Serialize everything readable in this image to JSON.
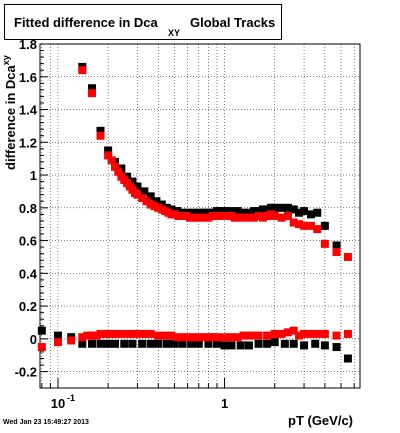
{
  "header": {
    "title_main": "Fitted difference in Dca",
    "title_sub": "XY",
    "title_tail": "Global Tracks"
  },
  "axis": {
    "ylabel_main": "difference in Dca",
    "ylabel_sub": "xy",
    "xlabel": "pT (GeV/c)"
  },
  "footer": {
    "timestamp": "Wed Jan 23 15:49:27 2013"
  },
  "chart_data": {
    "type": "scatter",
    "title": "Fitted difference in Dca XY Global Tracks",
    "xlabel": "pT (GeV/c)",
    "ylabel": "difference in Dca xy",
    "xscale": "log",
    "xlim": [
      0.078,
      6.5
    ],
    "ylim": [
      -0.3,
      1.8
    ],
    "yticks": [
      -0.2,
      0,
      0.2,
      0.4,
      0.6,
      0.8,
      1,
      1.2,
      1.4,
      1.6,
      1.8
    ],
    "ytick_labels": [
      "-0.2",
      "0",
      "0.2",
      "0.4",
      "0.6",
      "0.8",
      "1",
      "1.2",
      "1.4",
      "1.6",
      "1.8"
    ],
    "xtick_labels": [
      {
        "value": 0.1,
        "label": "10",
        "exp": "-1"
      },
      {
        "value": 1,
        "label": "1",
        "exp": ""
      }
    ],
    "grid": true,
    "colors": {
      "black_series": "#000000",
      "red_series": "#ff0000"
    },
    "series": [
      {
        "color": "black",
        "points": [
          [
            0.08,
            0.05
          ],
          [
            0.1,
            0.02
          ],
          [
            0.12,
            0.01
          ],
          [
            0.14,
            1.66
          ],
          [
            0.16,
            1.53
          ],
          [
            0.18,
            1.27
          ],
          [
            0.2,
            1.15
          ],
          [
            0.22,
            1.08
          ],
          [
            0.24,
            1.04
          ],
          [
            0.26,
            0.99
          ],
          [
            0.28,
            0.96
          ],
          [
            0.3,
            0.93
          ],
          [
            0.33,
            0.9
          ],
          [
            0.36,
            0.87
          ],
          [
            0.39,
            0.84
          ],
          [
            0.42,
            0.82
          ],
          [
            0.45,
            0.8
          ],
          [
            0.48,
            0.79
          ],
          [
            0.52,
            0.78
          ],
          [
            0.56,
            0.77
          ],
          [
            0.6,
            0.77
          ],
          [
            0.65,
            0.77
          ],
          [
            0.7,
            0.77
          ],
          [
            0.75,
            0.77
          ],
          [
            0.8,
            0.77
          ],
          [
            0.85,
            0.77
          ],
          [
            0.9,
            0.78
          ],
          [
            0.95,
            0.78
          ],
          [
            1.0,
            0.78
          ],
          [
            1.1,
            0.78
          ],
          [
            1.2,
            0.78
          ],
          [
            1.3,
            0.77
          ],
          [
            1.4,
            0.77
          ],
          [
            1.5,
            0.78
          ],
          [
            1.6,
            0.78
          ],
          [
            1.7,
            0.79
          ],
          [
            1.8,
            0.79
          ],
          [
            1.9,
            0.8
          ],
          [
            2.0,
            0.8
          ],
          [
            2.2,
            0.8
          ],
          [
            2.4,
            0.8
          ],
          [
            2.6,
            0.79
          ],
          [
            2.8,
            0.77
          ],
          [
            3.0,
            0.78
          ],
          [
            3.3,
            0.76
          ],
          [
            3.6,
            0.77
          ],
          [
            4.0,
            0.69
          ],
          [
            4.7,
            0.57
          ],
          [
            5.5,
            -0.12
          ],
          [
            0.14,
            -0.03
          ],
          [
            0.16,
            -0.03
          ],
          [
            0.18,
            -0.03
          ],
          [
            0.2,
            -0.03
          ],
          [
            0.22,
            -0.03
          ],
          [
            0.25,
            -0.03
          ],
          [
            0.28,
            -0.03
          ],
          [
            0.32,
            -0.03
          ],
          [
            0.36,
            -0.03
          ],
          [
            0.4,
            -0.03
          ],
          [
            0.45,
            -0.03
          ],
          [
            0.5,
            -0.03
          ],
          [
            0.56,
            -0.03
          ],
          [
            0.63,
            -0.03
          ],
          [
            0.7,
            -0.03
          ],
          [
            0.8,
            -0.03
          ],
          [
            0.9,
            -0.03
          ],
          [
            1.0,
            -0.04
          ],
          [
            1.1,
            -0.04
          ],
          [
            1.25,
            -0.04
          ],
          [
            1.4,
            -0.04
          ],
          [
            1.6,
            -0.03
          ],
          [
            1.8,
            -0.03
          ],
          [
            2.0,
            -0.02
          ],
          [
            2.3,
            -0.03
          ],
          [
            2.6,
            -0.03
          ],
          [
            3.0,
            -0.04
          ],
          [
            3.5,
            -0.03
          ],
          [
            4.0,
            -0.04
          ],
          [
            4.7,
            -0.05
          ]
        ]
      },
      {
        "color": "red",
        "points": [
          [
            0.08,
            -0.05
          ],
          [
            0.1,
            -0.02
          ],
          [
            0.12,
            -0.01
          ],
          [
            0.14,
            1.64
          ],
          [
            0.16,
            1.5
          ],
          [
            0.18,
            1.24
          ],
          [
            0.2,
            1.12
          ],
          [
            0.21,
            1.09
          ],
          [
            0.22,
            1.05
          ],
          [
            0.23,
            1.02
          ],
          [
            0.24,
            0.99
          ],
          [
            0.25,
            0.97
          ],
          [
            0.26,
            0.95
          ],
          [
            0.27,
            0.93
          ],
          [
            0.28,
            0.91
          ],
          [
            0.29,
            0.89
          ],
          [
            0.3,
            0.88
          ],
          [
            0.32,
            0.86
          ],
          [
            0.34,
            0.84
          ],
          [
            0.36,
            0.82
          ],
          [
            0.38,
            0.81
          ],
          [
            0.4,
            0.8
          ],
          [
            0.42,
            0.79
          ],
          [
            0.44,
            0.78
          ],
          [
            0.46,
            0.77
          ],
          [
            0.48,
            0.76
          ],
          [
            0.5,
            0.76
          ],
          [
            0.53,
            0.75
          ],
          [
            0.56,
            0.75
          ],
          [
            0.59,
            0.75
          ],
          [
            0.62,
            0.74
          ],
          [
            0.65,
            0.74
          ],
          [
            0.68,
            0.74
          ],
          [
            0.72,
            0.74
          ],
          [
            0.76,
            0.74
          ],
          [
            0.8,
            0.74
          ],
          [
            0.85,
            0.75
          ],
          [
            0.9,
            0.75
          ],
          [
            0.95,
            0.75
          ],
          [
            1.0,
            0.75
          ],
          [
            1.05,
            0.75
          ],
          [
            1.1,
            0.75
          ],
          [
            1.15,
            0.74
          ],
          [
            1.2,
            0.74
          ],
          [
            1.3,
            0.74
          ],
          [
            1.4,
            0.74
          ],
          [
            1.5,
            0.74
          ],
          [
            1.6,
            0.75
          ],
          [
            1.7,
            0.74
          ],
          [
            1.8,
            0.75
          ],
          [
            1.9,
            0.76
          ],
          [
            2.0,
            0.75
          ],
          [
            2.2,
            0.74
          ],
          [
            2.4,
            0.75
          ],
          [
            2.6,
            0.71
          ],
          [
            2.8,
            0.7
          ],
          [
            3.0,
            0.69
          ],
          [
            3.3,
            0.69
          ],
          [
            3.6,
            0.67
          ],
          [
            4.0,
            0.58
          ],
          [
            4.7,
            0.53
          ],
          [
            5.5,
            0.5
          ],
          [
            0.14,
            0.01
          ],
          [
            0.15,
            0.02
          ],
          [
            0.16,
            0.02
          ],
          [
            0.17,
            0.02
          ],
          [
            0.18,
            0.03
          ],
          [
            0.19,
            0.03
          ],
          [
            0.2,
            0.03
          ],
          [
            0.21,
            0.03
          ],
          [
            0.22,
            0.03
          ],
          [
            0.24,
            0.03
          ],
          [
            0.26,
            0.03
          ],
          [
            0.28,
            0.03
          ],
          [
            0.3,
            0.03
          ],
          [
            0.33,
            0.03
          ],
          [
            0.36,
            0.03
          ],
          [
            0.4,
            0.02
          ],
          [
            0.44,
            0.02
          ],
          [
            0.48,
            0.02
          ],
          [
            0.52,
            0.01
          ],
          [
            0.56,
            0.01
          ],
          [
            0.6,
            0.01
          ],
          [
            0.65,
            0.01
          ],
          [
            0.7,
            0.01
          ],
          [
            0.75,
            0.01
          ],
          [
            0.8,
            0.01
          ],
          [
            0.85,
            0.01
          ],
          [
            0.9,
            0.01
          ],
          [
            1.0,
            0.01
          ],
          [
            1.1,
            0.01
          ],
          [
            1.2,
            0.01
          ],
          [
            1.3,
            0.02
          ],
          [
            1.4,
            0.02
          ],
          [
            1.5,
            0.02
          ],
          [
            1.6,
            0.02
          ],
          [
            1.8,
            0.02
          ],
          [
            2.0,
            0.03
          ],
          [
            2.2,
            0.03
          ],
          [
            2.4,
            0.04
          ],
          [
            2.6,
            0.05
          ],
          [
            2.8,
            0.02
          ],
          [
            3.0,
            0.03
          ],
          [
            3.3,
            0.03
          ],
          [
            3.6,
            0.03
          ],
          [
            4.0,
            0.03
          ],
          [
            4.7,
            0.02
          ],
          [
            5.5,
            0.03
          ]
        ]
      }
    ]
  }
}
